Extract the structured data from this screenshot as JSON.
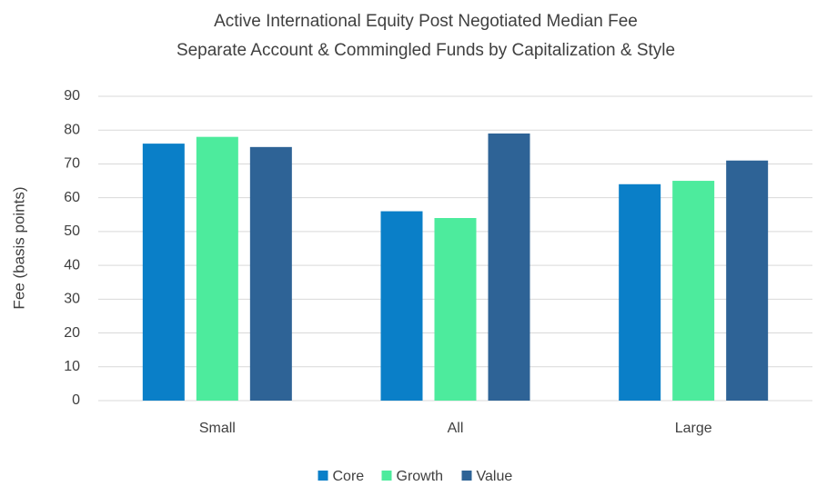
{
  "chart_data": {
    "type": "bar",
    "title": "Active International Equity Post Negotiated Median Fee",
    "subtitle": "Separate Account & Commingled Funds by Capitalization & Style",
    "y_label": "Fee (basis points)",
    "categories": [
      "Small",
      "All",
      "Large"
    ],
    "series": [
      {
        "name": "Core",
        "color": "#0a7fc8",
        "values": [
          76,
          56,
          64
        ]
      },
      {
        "name": "Growth",
        "color": "#4deb9d",
        "values": [
          78,
          54,
          65
        ]
      },
      {
        "name": "Value",
        "color": "#2e6396",
        "values": [
          75,
          79,
          71
        ]
      }
    ],
    "ylim": [
      0,
      90
    ],
    "yticks": [
      0,
      10,
      20,
      30,
      40,
      50,
      60,
      70,
      80,
      90
    ],
    "grid": true,
    "legend": "bottom"
  }
}
